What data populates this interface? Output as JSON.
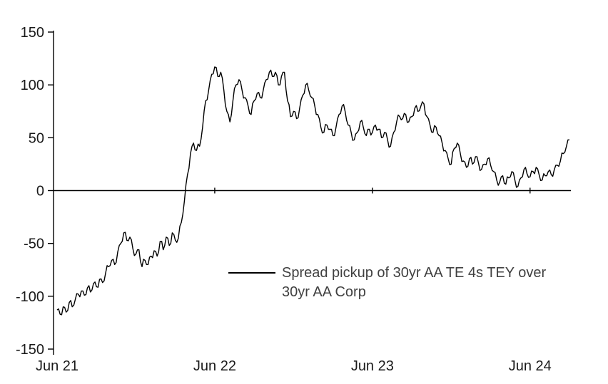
{
  "chart": {
    "legend": {
      "line1": "Spread pickup of 30yr AA TE 4s TEY over",
      "line2": "30yr AA Corp"
    },
    "line_color": "#000000",
    "axis_color": "#000000"
  },
  "chart_data": {
    "type": "line",
    "title": "",
    "xlabel": "",
    "ylabel": "",
    "ylim": [
      -150,
      150
    ],
    "y_ticks": [
      150,
      100,
      50,
      0,
      -50,
      -100,
      -150
    ],
    "x_tick_labels": [
      "Jun 21",
      "Jun 22",
      "Jun 23",
      "Jun 24"
    ],
    "x_tick_indices": [
      0,
      52,
      104,
      156
    ],
    "x_interval": "weekly",
    "grid": false,
    "legend_position": "center-right",
    "series": [
      {
        "name": "Spread pickup of 30yr AA TE 4s TEY over 30yr AA Corp",
        "color": "#000000",
        "values": [
          -113,
          -117,
          -110,
          -115,
          -106,
          -110,
          -103,
          -98,
          -95,
          -99,
          -92,
          -96,
          -88,
          -91,
          -84,
          -87,
          -78,
          -72,
          -66,
          -70,
          -58,
          -50,
          -40,
          -47,
          -44,
          -55,
          -60,
          -56,
          -72,
          -66,
          -70,
          -62,
          -57,
          -62,
          -48,
          -56,
          -44,
          -52,
          -40,
          -47,
          -45,
          -30,
          -10,
          15,
          35,
          45,
          38,
          42,
          60,
          85,
          95,
          110,
          117,
          108,
          112,
          95,
          75,
          65,
          85,
          100,
          105,
          95,
          88,
          80,
          72,
          85,
          92,
          88,
          95,
          105,
          112,
          108,
          112,
          100,
          108,
          112,
          85,
          70,
          75,
          68,
          78,
          90,
          100,
          95,
          88,
          80,
          72,
          60,
          55,
          62,
          58,
          52,
          60,
          72,
          80,
          75,
          62,
          55,
          48,
          55,
          65,
          60,
          52,
          58,
          55,
          62,
          58,
          50,
          55,
          48,
          42,
          55,
          65,
          70,
          68,
          72,
          65,
          70,
          78,
          75,
          80,
          82,
          70,
          62,
          55,
          60,
          52,
          45,
          38,
          30,
          25,
          40,
          45,
          35,
          28,
          22,
          30,
          25,
          32,
          26,
          20,
          25,
          30,
          24,
          18,
          10,
          8,
          14,
          6,
          12,
          18,
          10,
          4,
          12,
          20,
          16,
          13,
          18,
          22,
          15,
          10,
          14,
          18,
          15,
          20,
          24,
          28,
          35,
          42,
          48
        ]
      }
    ]
  }
}
